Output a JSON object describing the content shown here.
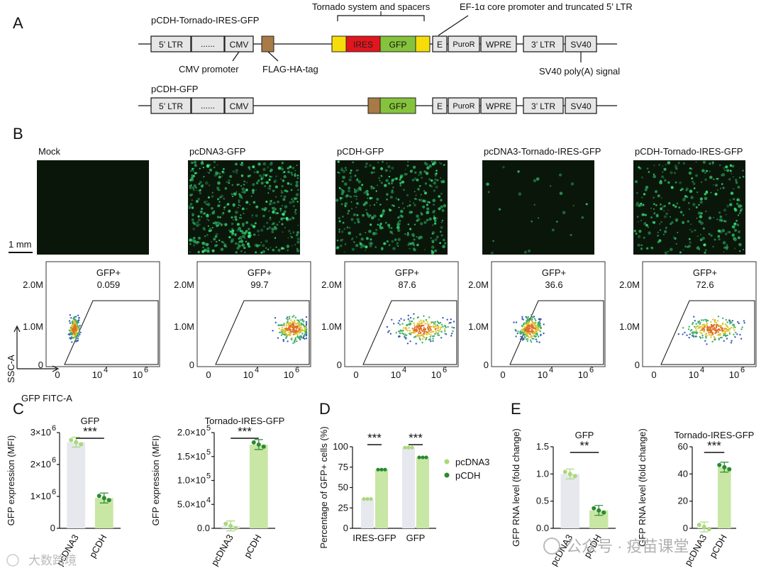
{
  "panels": {
    "a": "A",
    "b": "B",
    "c": "C",
    "d": "D",
    "e": "E"
  },
  "panelA": {
    "construct1_name": "pCDH-Tornado-IRES-GFP",
    "construct2_name": "pCDH-GFP",
    "top_annotation_1": "Tornado system and spacers",
    "top_annotation_2": "EF-1α core promoter and truncated 5’ LTR",
    "cmv_promoter": "CMV promoter",
    "flag_tag": "FLAG-HA-tag",
    "sv40_signal": "SV40 poly(A) signal",
    "elements": {
      "ltr5": "5’ LTR",
      "dots": "......",
      "cmv": "CMV",
      "ires": "IRES",
      "gfp": "GFP",
      "e": "E",
      "puro": "PuroR",
      "wpre": "WPRE",
      "ltr3": "3’ LTR",
      "sv40": "SV40"
    },
    "colors": {
      "yellow": "#f6dd0a",
      "red": "#e3151d",
      "green": "#86c33c",
      "brown": "#a87a45",
      "gray": "#e6e6e6"
    }
  },
  "panelB": {
    "conditions": [
      {
        "name": "Mock",
        "gate_label": "GFP+",
        "gate_value": "0.059",
        "intensity": 0.0
      },
      {
        "name": "pcDNA3-GFP",
        "gate_label": "GFP+",
        "gate_value": "99.7",
        "intensity": 0.95
      },
      {
        "name": "pCDH-GFP",
        "gate_label": "GFP+",
        "gate_value": "87.6",
        "intensity": 0.75
      },
      {
        "name": "pcDNA3-Tornado-IRES-GFP",
        "gate_label": "GFP+",
        "gate_value": "36.6",
        "intensity": 0.05
      },
      {
        "name": "pCDH-Tornado-IRES-GFP",
        "gate_label": "GFP+",
        "gate_value": "72.6",
        "intensity": 0.55
      }
    ],
    "scale_bar": "1 mm",
    "y_ticks": [
      "2.0M",
      "1.0M",
      "0"
    ],
    "x_ticks": [
      "0",
      "10",
      "10"
    ],
    "x_tick_sups": [
      "",
      "4",
      "6"
    ],
    "ylabel": "SSC-A",
    "xlabel": "GFP FITC-A",
    "image_color": "#0b160b"
  },
  "chart_data": [
    {
      "type": "bar",
      "title": "GFP",
      "ylabel": "GFP expression (MFI)",
      "categories": [
        "pcDNA3",
        "pCDH"
      ],
      "values": [
        2700000,
        950000
      ],
      "ylim": [
        0,
        3000000
      ],
      "ytick_labels": [
        "0",
        "1×10",
        "2×10",
        "3×10"
      ],
      "ytick_sups": [
        "",
        "6",
        "6",
        "6"
      ],
      "significance": "***"
    },
    {
      "type": "bar",
      "title": "Tornado-IRES-GFP",
      "ylabel": "GFP expression (MFI)",
      "categories": [
        "pcDNA3",
        "pCDH"
      ],
      "values": [
        5000,
        175000
      ],
      "ylim": [
        0,
        200000
      ],
      "ytick_labels": [
        "0.0",
        "5.0×10",
        "1.0×10",
        "1.5×10",
        "2.0×10"
      ],
      "ytick_sups": [
        "",
        "4",
        "5",
        "5",
        "5"
      ],
      "significance": "***"
    },
    {
      "type": "bar",
      "title": "",
      "ylabel": "Percentage of GFP+ cells (%)",
      "categories": [
        "IRES-GFP",
        "GFP"
      ],
      "series": [
        {
          "name": "pcDNA3",
          "values": [
            36,
            99
          ]
        },
        {
          "name": "pCDH",
          "values": [
            72,
            87
          ]
        }
      ],
      "ylim": [
        0,
        100
      ],
      "ytick_labels": [
        "0",
        "25",
        "50",
        "75",
        "100"
      ],
      "significance": [
        "***",
        "***"
      ]
    },
    {
      "type": "bar",
      "title": "GFP",
      "ylabel": "GFP RNA level (fold change)",
      "categories": [
        "pcDNA3",
        "pCDH"
      ],
      "values": [
        1.0,
        0.33
      ],
      "ylim": [
        0,
        1.5
      ],
      "ytick_labels": [
        "0.0",
        "0.5",
        "1.0",
        "1.5"
      ],
      "significance": "**"
    },
    {
      "type": "bar",
      "title": "Tornado-IRES-GFP",
      "ylabel": "GFP RNA level (fold change)",
      "categories": [
        "pcDNA3",
        "pCDH"
      ],
      "values": [
        1,
        45
      ],
      "ylim": [
        0,
        60
      ],
      "ytick_labels": [
        "0",
        "20",
        "40",
        "60"
      ],
      "significance": "***"
    }
  ],
  "legend": {
    "pcdna3": "pcDNA3",
    "pcdh": "pCDH"
  },
  "colors": {
    "light_bar": "#e6e8ee",
    "green_bar": "#c8e6a4",
    "light_dot": "#a9d87a",
    "dark_dot": "#2a8a30"
  },
  "watermarks": {
    "left": "大数跨境",
    "right": "公众号 · 疫苗课堂"
  }
}
